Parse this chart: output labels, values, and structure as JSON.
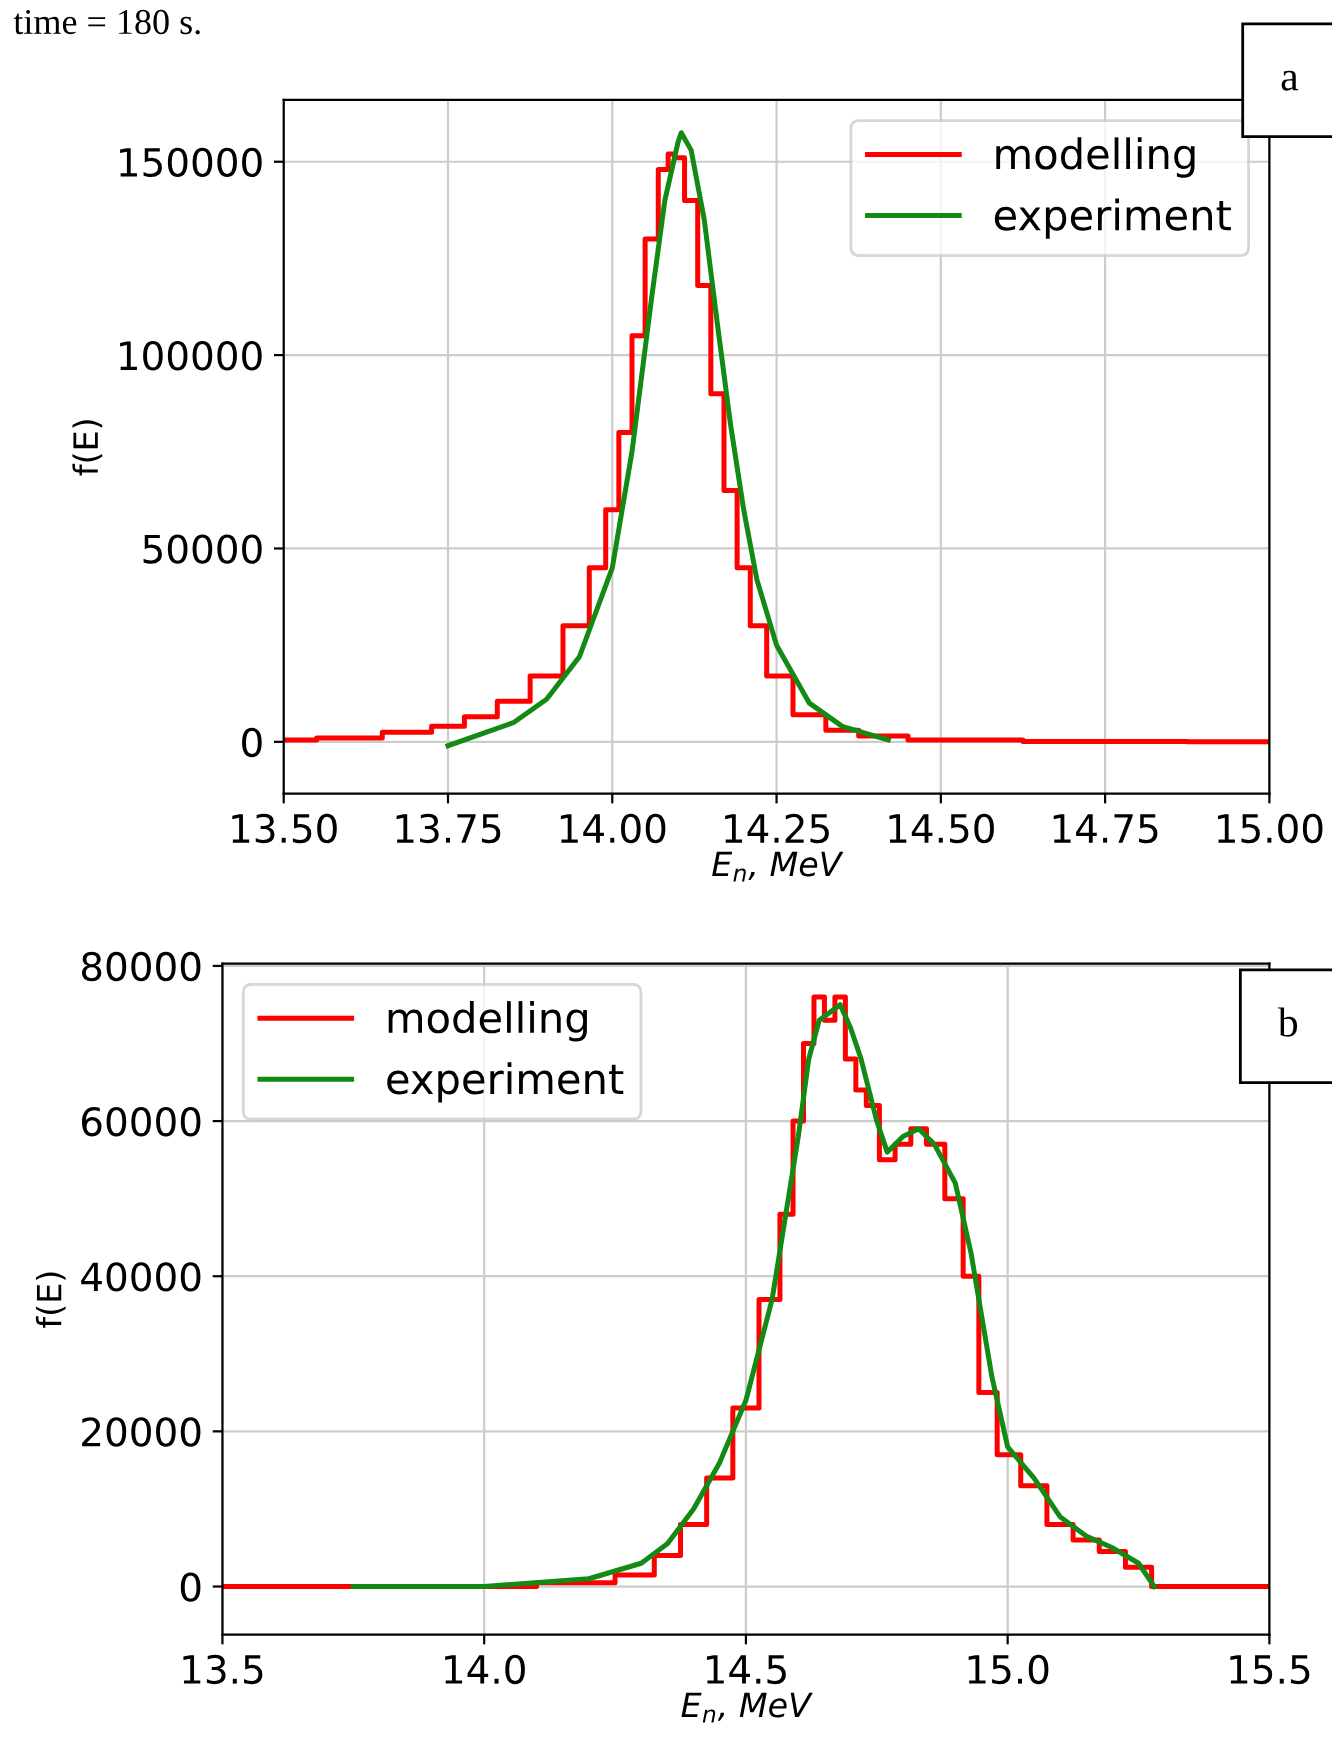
{
  "chart_data": [
    {
      "type": "line",
      "annotations": [
        "time = 180 s.",
        "a"
      ],
      "xlabel": "E$_{n}$, MeV",
      "ylabel": "f(E)",
      "xlim": [
        13.5,
        15.0
      ],
      "ylim": [
        -13400,
        166000
      ],
      "xticks": [
        {
          "value": 13.5,
          "label": "13.50"
        },
        {
          "value": 13.75,
          "label": "13.75"
        },
        {
          "value": 14.0,
          "label": "14.00"
        },
        {
          "value": 14.25,
          "label": "14.25"
        },
        {
          "value": 14.5,
          "label": "14.50"
        },
        {
          "value": 14.75,
          "label": "14.75"
        },
        {
          "value": 15.0,
          "label": "15.00"
        }
      ],
      "yticks": [
        0,
        50000,
        100000,
        150000
      ],
      "grid": true,
      "legend": "top right",
      "series": [
        {
          "name": "modelling",
          "color": "#ff0000",
          "type": "step",
          "x": [
            13.5,
            13.6,
            13.7,
            13.75,
            13.8,
            13.85,
            13.9,
            13.95,
            13.98,
            14.0,
            14.02,
            14.04,
            14.06,
            14.08,
            14.09,
            14.1,
            14.12,
            14.14,
            14.16,
            14.18,
            14.2,
            14.22,
            14.25,
            14.3,
            14.35,
            14.4,
            14.5,
            14.75,
            15.0
          ],
          "values": [
            500,
            1000,
            2500,
            4000,
            6500,
            10500,
            17000,
            30000,
            45000,
            60000,
            80000,
            105000,
            130000,
            148000,
            152000,
            151000,
            140000,
            118000,
            90000,
            65000,
            45000,
            30000,
            17000,
            7000,
            3000,
            1500,
            500,
            100,
            0
          ]
        },
        {
          "name": "experiment",
          "color": "#138a13",
          "x": [
            13.75,
            13.8,
            13.85,
            13.9,
            13.95,
            14.0,
            14.03,
            14.06,
            14.08,
            14.1,
            14.105,
            14.12,
            14.14,
            14.16,
            14.18,
            14.2,
            14.22,
            14.25,
            14.3,
            14.35,
            14.4,
            14.42
          ],
          "values": [
            -1000,
            2000,
            5000,
            11000,
            22000,
            45000,
            75000,
            115000,
            140000,
            155000,
            157500,
            153000,
            135000,
            108000,
            82000,
            60000,
            42000,
            25000,
            10000,
            4000,
            1500,
            500
          ]
        }
      ]
    },
    {
      "type": "line",
      "annotations": [
        "b"
      ],
      "xlabel": "E$_{n}$, MeV",
      "ylabel": "f(E)",
      "xlim": [
        13.5,
        15.5
      ],
      "ylim": [
        -6200,
        80300
      ],
      "xticks": [
        {
          "value": 13.5,
          "label": "13.5"
        },
        {
          "value": 14.0,
          "label": "14.0"
        },
        {
          "value": 14.5,
          "label": "14.5"
        },
        {
          "value": 15.0,
          "label": "15.0"
        },
        {
          "value": 15.5,
          "label": "15.5"
        }
      ],
      "yticks": [
        0,
        20000,
        40000,
        60000,
        80000
      ],
      "grid": true,
      "legend": "top left",
      "series": [
        {
          "name": "modelling",
          "color": "#ff0000",
          "type": "step",
          "x": [
            13.5,
            14.0,
            14.2,
            14.3,
            14.35,
            14.4,
            14.45,
            14.5,
            14.55,
            14.58,
            14.6,
            14.62,
            14.64,
            14.66,
            14.68,
            14.7,
            14.72,
            14.74,
            14.77,
            14.8,
            14.83,
            14.86,
            14.9,
            14.93,
            14.96,
            15.0,
            15.05,
            15.1,
            15.15,
            15.2,
            15.25,
            15.3,
            15.5
          ],
          "values": [
            0,
            0,
            500,
            1500,
            4000,
            8000,
            14000,
            23000,
            37000,
            48000,
            60000,
            70000,
            76000,
            73000,
            76000,
            68000,
            64000,
            62000,
            55000,
            57000,
            59000,
            57000,
            50000,
            40000,
            25000,
            17000,
            13000,
            8000,
            6000,
            4500,
            2500,
            0,
            0
          ]
        },
        {
          "name": "experiment",
          "color": "#138a13",
          "x": [
            13.75,
            14.0,
            14.2,
            14.3,
            14.35,
            14.4,
            14.45,
            14.5,
            14.55,
            14.6,
            14.62,
            14.64,
            14.66,
            14.68,
            14.7,
            14.72,
            14.75,
            14.77,
            14.8,
            14.83,
            14.86,
            14.9,
            14.93,
            14.97,
            15.0,
            15.05,
            15.1,
            15.15,
            15.2,
            15.25,
            15.28
          ],
          "values": [
            0,
            0,
            1000,
            3000,
            5500,
            10000,
            16000,
            24000,
            37000,
            58000,
            68000,
            73000,
            74000,
            75000,
            72000,
            68000,
            60000,
            56000,
            58000,
            59000,
            57000,
            52000,
            43000,
            27000,
            18000,
            14000,
            9000,
            6500,
            5000,
            3000,
            0
          ]
        }
      ]
    }
  ]
}
